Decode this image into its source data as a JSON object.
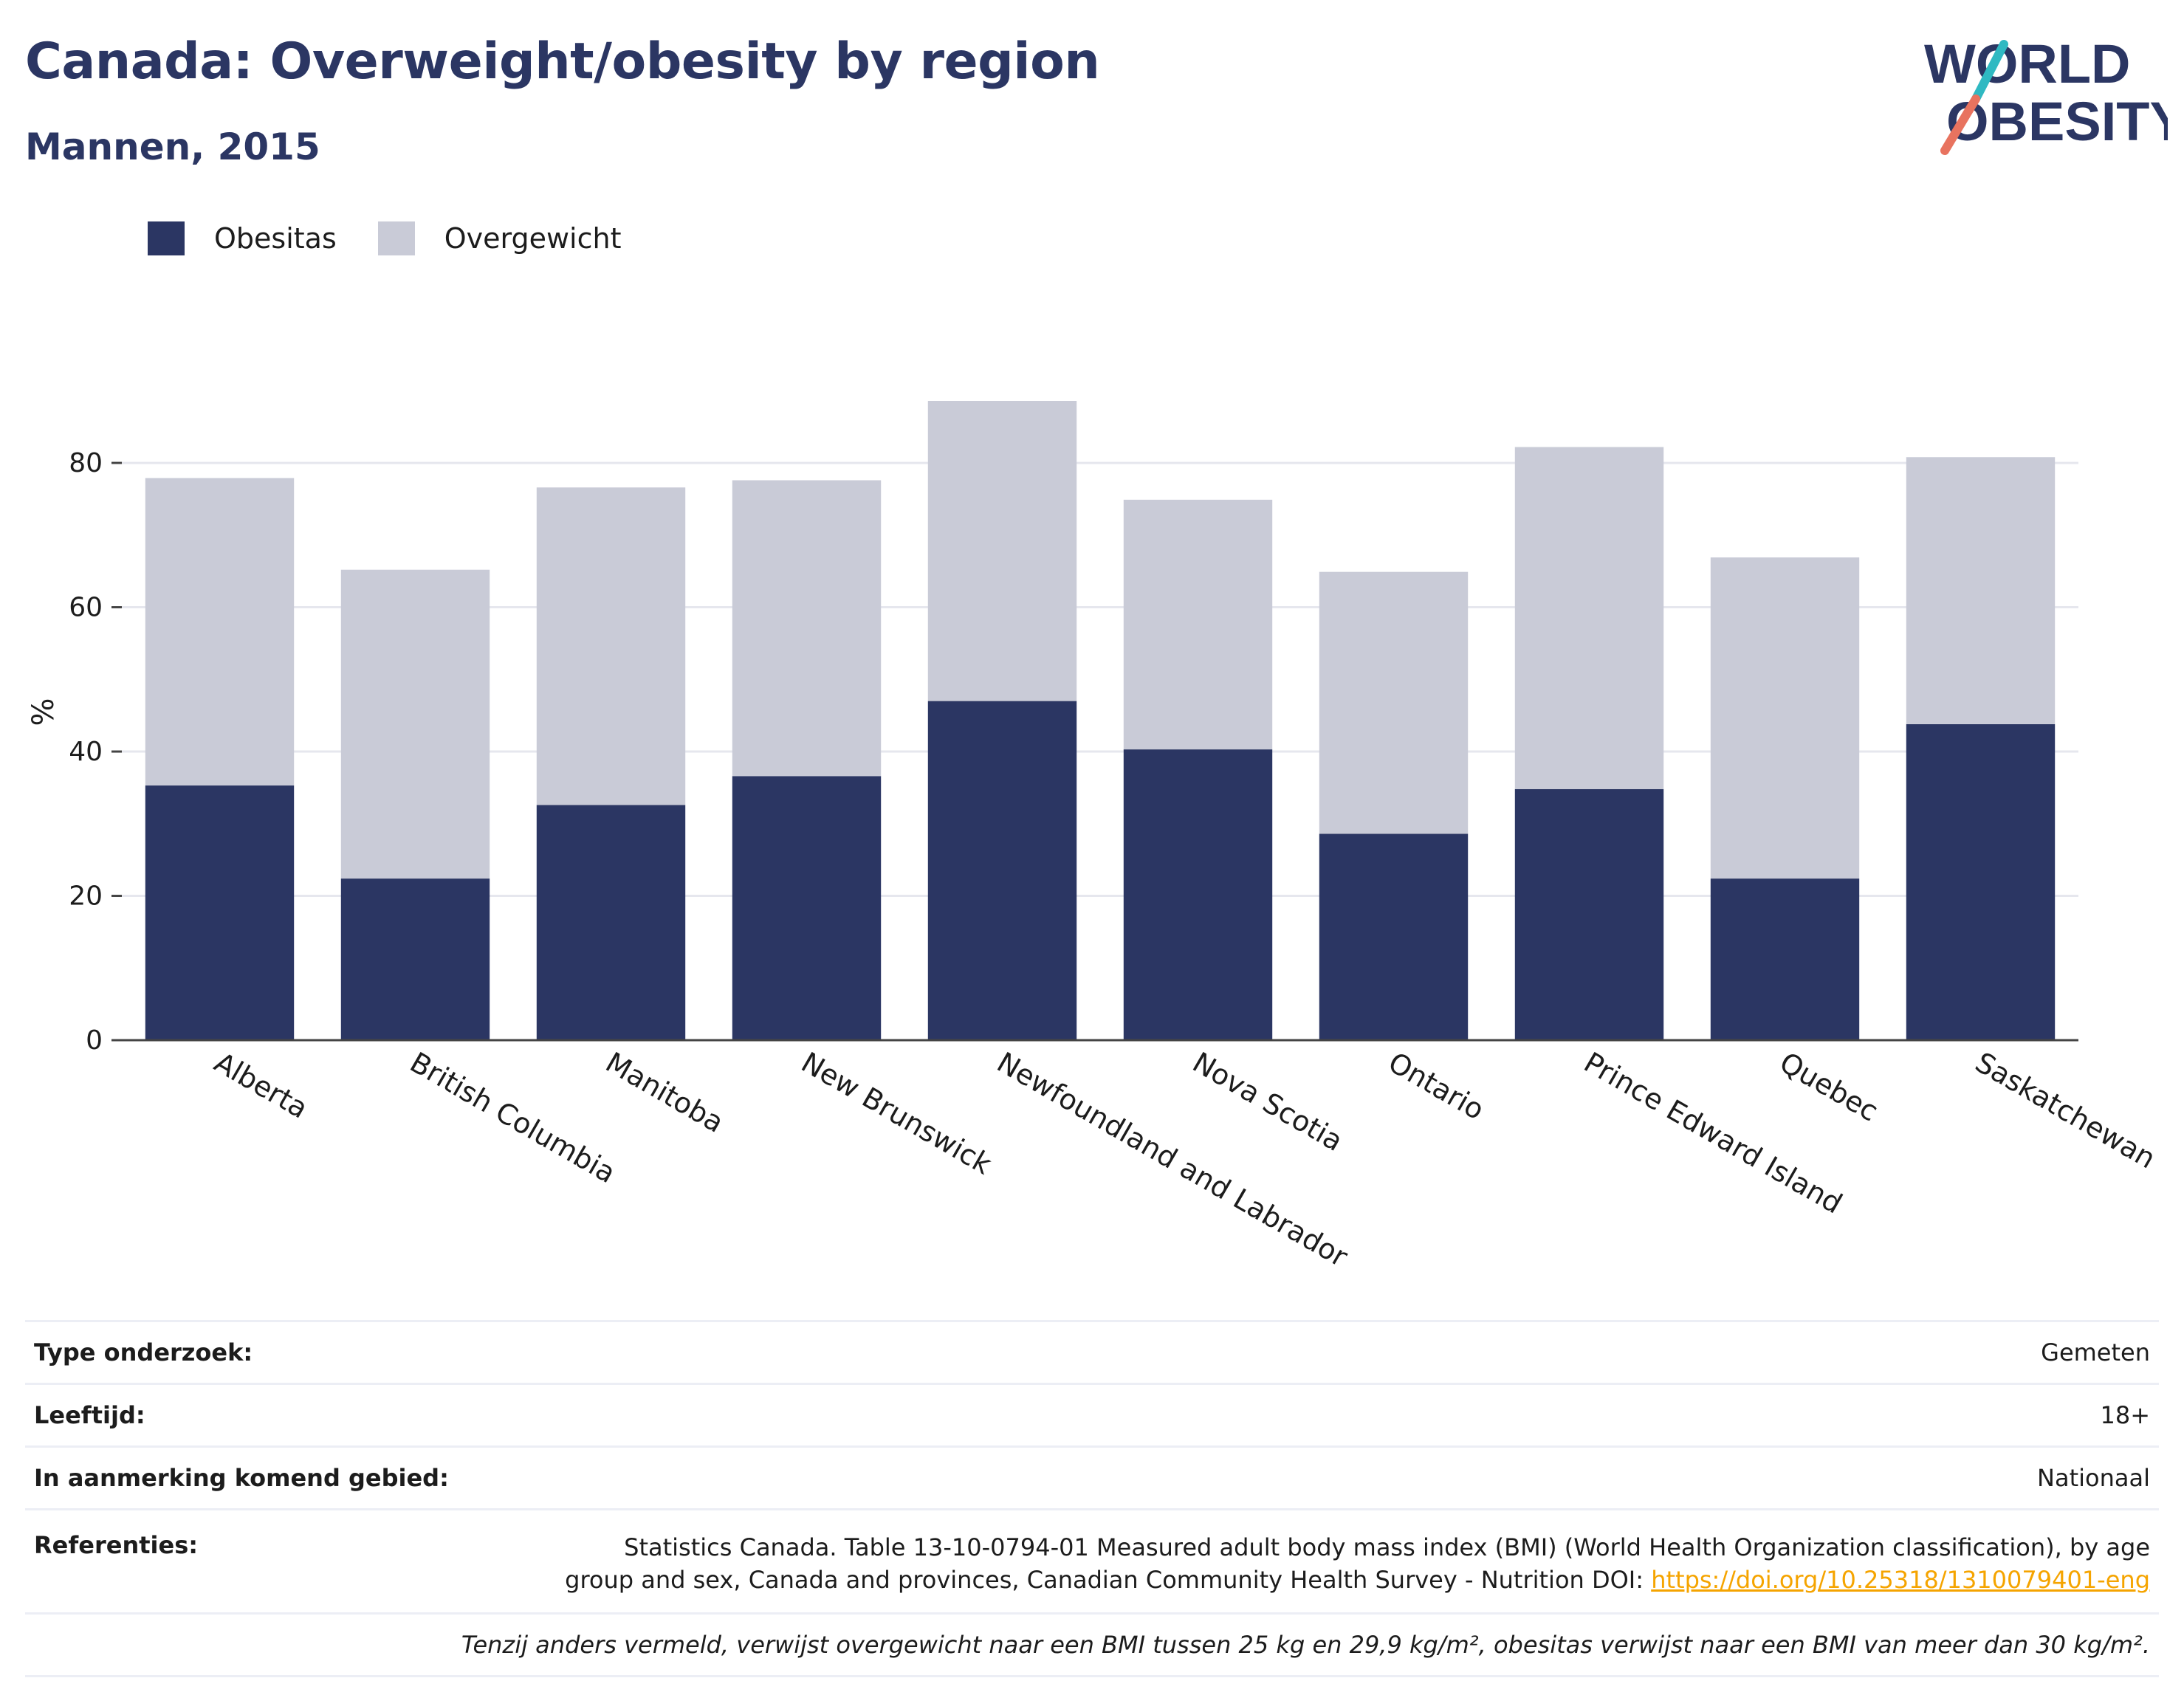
{
  "header": {
    "title": "Canada: Overweight/obesity by region",
    "subtitle": "Mannen, 2015"
  },
  "logo": {
    "line1": "WORLD",
    "line2": "OBESITY",
    "accent_colors": [
      "#e8735f",
      "#2fb9c2"
    ]
  },
  "colors": {
    "obesitas": "#2b3663",
    "overgewicht": "#c9cbd7",
    "title": "#2b3663",
    "link": "#f5a400"
  },
  "chart_data": {
    "type": "bar",
    "stacked": true,
    "title": "Canada: Overweight/obesity by region",
    "subtitle": "Mannen, 2015",
    "xlabel": "",
    "ylabel": "%",
    "ylim": [
      0,
      93
    ],
    "yticks": [
      0,
      20,
      40,
      60,
      80
    ],
    "grid": true,
    "legend_position": "top-left",
    "categories": [
      "Alberta",
      "British Columbia",
      "Manitoba",
      "New Brunswick",
      "Newfoundland and Labrador",
      "Nova Scotia",
      "Ontario",
      "Prince Edward Island",
      "Quebec",
      "Saskatchewan"
    ],
    "series": [
      {
        "name": "Obesitas",
        "values": [
          35.3,
          22.4,
          32.6,
          36.6,
          47.0,
          40.3,
          28.6,
          34.8,
          22.4,
          43.8
        ]
      },
      {
        "name": "Overgewicht",
        "values": [
          42.6,
          42.8,
          44.0,
          41.0,
          41.6,
          34.6,
          36.3,
          47.4,
          44.5,
          37.0
        ]
      }
    ]
  },
  "info": {
    "rows": [
      {
        "key": "Type onderzoek:",
        "value": "Gemeten"
      },
      {
        "key": "Leeftijd:",
        "value": "18+"
      },
      {
        "key": "In aanmerking komend gebied:",
        "value": "Nationaal"
      }
    ],
    "references": {
      "key": "Referenties:",
      "line1": "Statistics Canada. Table 13-10-0794-01 Measured adult body mass index (BMI) (World Health Organization classification), by age",
      "line2": "group and sex, Canada and provinces, Canadian Community Health Survey - Nutrition DOI: ",
      "link": "https://doi.org/10.25318/1310079401-eng"
    },
    "note": "Tenzij anders vermeld, verwijst overgewicht naar een BMI tussen 25 kg en 29,9 kg/m², obesitas verwijst naar een BMI van meer dan 30 kg/m²."
  }
}
